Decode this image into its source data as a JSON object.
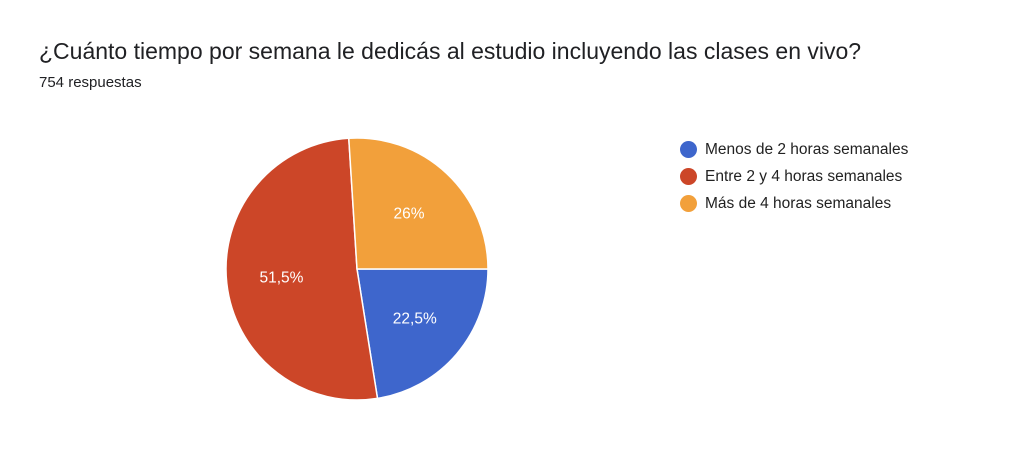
{
  "chart_data": {
    "type": "pie",
    "title": "¿Cuánto tiempo por semana le dedicás al estudio incluyendo las clases en vivo?",
    "subtitle": "754 respuestas",
    "categories": [
      "Menos de 2 horas semanales",
      "Entre 2 y 4 horas semanales",
      "Más de 4 horas semanales"
    ],
    "values": [
      22.5,
      51.5,
      26
    ],
    "labels": [
      "22,5%",
      "51,5%",
      "26%"
    ],
    "colors": [
      "#3e66cc",
      "#cc4628",
      "#f2a03b"
    ],
    "legend_position": "right"
  }
}
